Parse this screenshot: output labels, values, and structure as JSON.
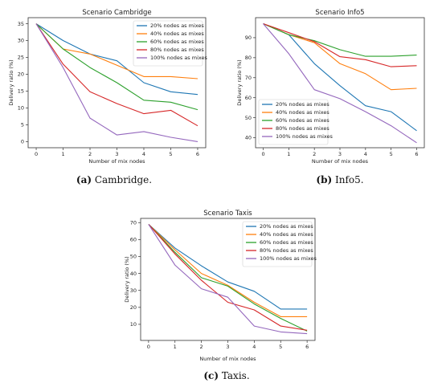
{
  "chart_data": [
    {
      "type": "line",
      "title": "Scenario Cambridge",
      "xlabel": "Number of mix nodes",
      "ylabel": "Delivery ratio (%)",
      "caption_label": "(a)",
      "caption_text": " Cambridge.",
      "x": [
        0,
        1,
        2,
        3,
        4,
        5,
        6
      ],
      "xlim": [
        -0.3,
        6.3
      ],
      "ylim": [
        -1.8,
        36.8
      ],
      "yticks": [
        0,
        5,
        10,
        15,
        20,
        25,
        30,
        35
      ],
      "legend": "top-right",
      "series": [
        {
          "name": "20% nodes as mixes",
          "color": "#1f77b4",
          "values": [
            35,
            30,
            26,
            24,
            17.5,
            14.8,
            14
          ]
        },
        {
          "name": "40% nodes as mixes",
          "color": "#ff7f0e",
          "values": [
            35,
            27.5,
            26,
            22.7,
            19.3,
            19.3,
            18.7
          ]
        },
        {
          "name": "60% nodes as mixes",
          "color": "#2ca02c",
          "values": [
            35,
            27.5,
            22,
            17.5,
            12.3,
            11.7,
            9.5
          ]
        },
        {
          "name": "80% nodes as mixes",
          "color": "#d62728",
          "values": [
            35,
            23,
            14.8,
            11.3,
            8.3,
            9.3,
            4.7
          ]
        },
        {
          "name": "100% nodes as mixes",
          "color": "#9467bd",
          "values": [
            35,
            22,
            7,
            2,
            3,
            1.3,
            0
          ]
        }
      ]
    },
    {
      "type": "line",
      "title": "Scenario Info5",
      "xlabel": "Number of mix nodes",
      "ylabel": "Delivery ratio (%)",
      "caption_label": "(b)",
      "caption_text": " Info5.",
      "x": [
        0,
        1,
        2,
        3,
        4,
        5,
        6
      ],
      "xlim": [
        -0.3,
        6.3
      ],
      "ylim": [
        35,
        100
      ],
      "yticks": [
        40,
        50,
        60,
        70,
        80,
        90
      ],
      "legend": "bottom-left",
      "series": [
        {
          "name": "20% nodes as mixes",
          "color": "#1f77b4",
          "values": [
            97,
            91.5,
            77,
            66,
            56,
            53,
            43.5
          ]
        },
        {
          "name": "40% nodes as mixes",
          "color": "#ff7f0e",
          "values": [
            97,
            91.5,
            87.5,
            77,
            72,
            64,
            64.7
          ]
        },
        {
          "name": "60% nodes as mixes",
          "color": "#2ca02c",
          "values": [
            97,
            91.5,
            88.5,
            84,
            80.7,
            80.7,
            81.3
          ]
        },
        {
          "name": "80% nodes as mixes",
          "color": "#d62728",
          "values": [
            97,
            92.5,
            88,
            80.5,
            79,
            75.5,
            76
          ]
        },
        {
          "name": "100% nodes as mixes",
          "color": "#9467bd",
          "values": [
            97,
            82,
            64,
            59.5,
            53,
            46,
            37.5
          ]
        }
      ]
    },
    {
      "type": "line",
      "title": "Scenario Taxis",
      "xlabel": "Number of mix nodes",
      "ylabel": "Delivery ratio (%)",
      "caption_label": "(c)",
      "caption_text": " Taxis.",
      "x": [
        0,
        1,
        2,
        3,
        4,
        5,
        6
      ],
      "xlim": [
        -0.3,
        6.3
      ],
      "ylim": [
        0.5,
        72.5
      ],
      "yticks": [
        10,
        20,
        30,
        40,
        50,
        60,
        70
      ],
      "legend": "top-right",
      "series": [
        {
          "name": "20% nodes as mixes",
          "color": "#1f77b4",
          "values": [
            69,
            55,
            44.5,
            35,
            29.5,
            19,
            19
          ]
        },
        {
          "name": "40% nodes as mixes",
          "color": "#ff7f0e",
          "values": [
            69,
            54,
            40,
            33,
            23,
            14.5,
            14.5
          ]
        },
        {
          "name": "60% nodes as mixes",
          "color": "#2ca02c",
          "values": [
            69,
            52.5,
            37.5,
            32.5,
            22,
            13.5,
            6
          ]
        },
        {
          "name": "80% nodes as mixes",
          "color": "#d62728",
          "values": [
            69,
            51.5,
            36,
            23,
            18.5,
            9,
            6.5
          ]
        },
        {
          "name": "100% nodes as mixes",
          "color": "#9467bd",
          "values": [
            69,
            45,
            31,
            26,
            9,
            5.5,
            4.5
          ]
        }
      ]
    }
  ]
}
